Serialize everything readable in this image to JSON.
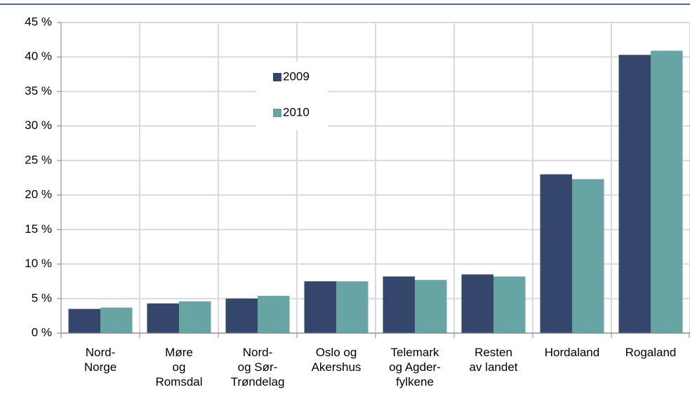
{
  "chart_data": {
    "type": "bar",
    "categories": [
      "Nord-\nNorge",
      "Møre\nog\nRomsdal",
      "Nord-\nog Sør-\nTrøndelag",
      "Oslo og\nAkershus",
      "Telemark\nog Agder-\nfylkene",
      "Resten\nav landet",
      "Hordaland",
      "Rogaland"
    ],
    "series": [
      {
        "name": "2009",
        "color": "#34466b",
        "values": [
          3.5,
          4.3,
          5.0,
          7.5,
          8.2,
          8.5,
          23.0,
          40.3
        ]
      },
      {
        "name": "2010",
        "color": "#66a5a4",
        "values": [
          3.7,
          4.6,
          5.4,
          7.5,
          7.7,
          8.2,
          22.3,
          40.9
        ]
      }
    ],
    "ylim": [
      0,
      45
    ],
    "yticks": [
      {
        "value": 0,
        "label": "0 %"
      },
      {
        "value": 5,
        "label": "5 %"
      },
      {
        "value": 10,
        "label": "10 %"
      },
      {
        "value": 15,
        "label": "15 %"
      },
      {
        "value": 20,
        "label": "20 %"
      },
      {
        "value": 25,
        "label": "25 %"
      },
      {
        "value": 30,
        "label": "30 %"
      },
      {
        "value": 35,
        "label": "35 %"
      },
      {
        "value": 40,
        "label": "40 %"
      },
      {
        "value": 45,
        "label": "45 %"
      }
    ],
    "grid": true
  }
}
